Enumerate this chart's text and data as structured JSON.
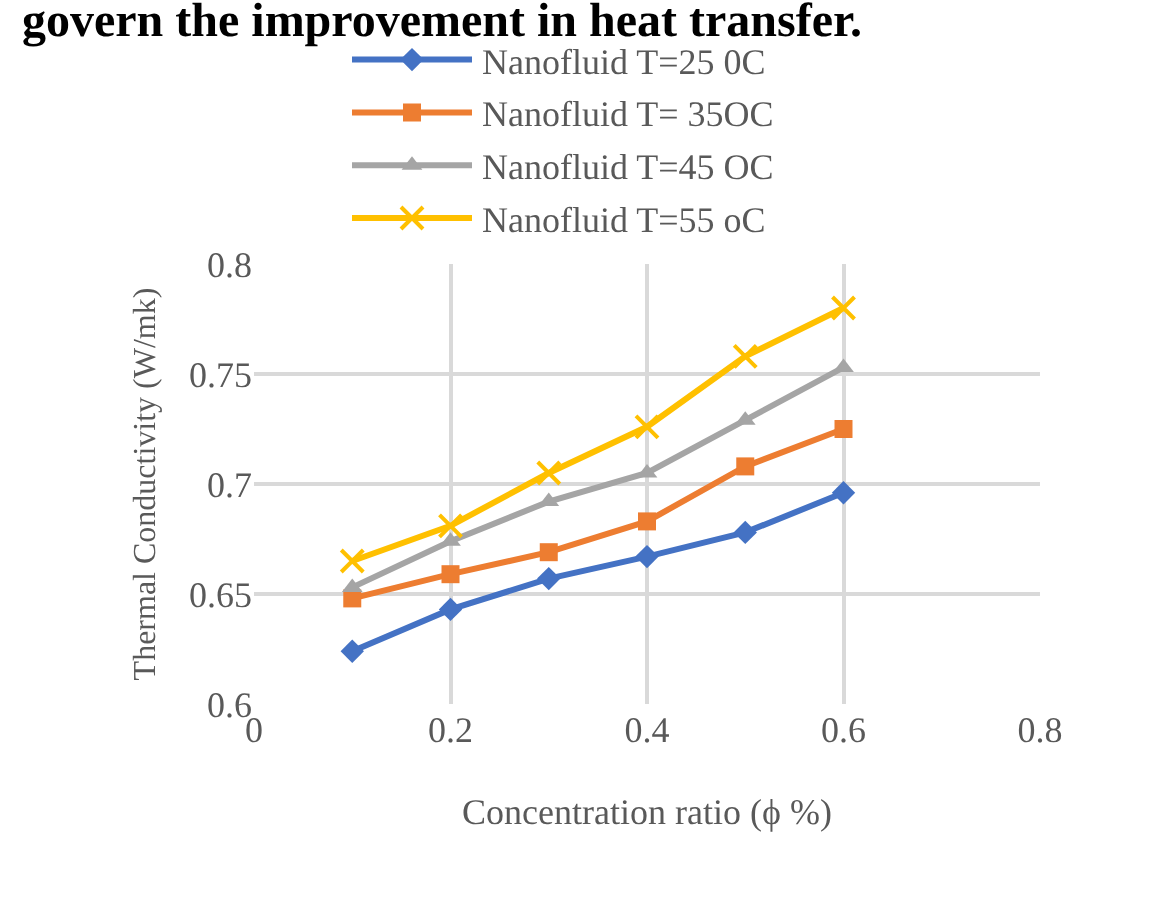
{
  "chart_data": {
    "type": "line",
    "xlabel": "Concentration ratio (ϕ %)",
    "ylabel": "Thermal Conductivity (W/mk)",
    "annotations": [
      "govern the improvement in heat transfer."
    ],
    "x": [
      0.1,
      0.2,
      0.3,
      0.4,
      0.5,
      0.6
    ],
    "series": [
      {
        "name": "Nanofluid T=25 0C",
        "color": "#4472c4",
        "marker": "diamond",
        "values": [
          0.624,
          0.643,
          0.657,
          0.667,
          0.678,
          0.696
        ]
      },
      {
        "name": "Nanofluid T= 35OC",
        "color": "#ed7d31",
        "marker": "square",
        "values": [
          0.648,
          0.659,
          0.669,
          0.683,
          0.708,
          0.725
        ]
      },
      {
        "name": "Nanofluid T=45 OC",
        "color": "#a5a5a5",
        "marker": "triangle",
        "values": [
          0.653,
          0.674,
          0.692,
          0.705,
          0.729,
          0.753
        ]
      },
      {
        "name": "Nanofluid T=55 oC",
        "color": "#ffc000",
        "marker": "cross",
        "values": [
          0.665,
          0.681,
          0.705,
          0.726,
          0.758,
          0.78
        ]
      }
    ],
    "xlim": [
      0,
      0.8
    ],
    "xticks": [
      0,
      0.2,
      0.4,
      0.6,
      0.8
    ],
    "ylim": [
      0.6,
      0.8
    ],
    "yticks": [
      0.6,
      0.65,
      0.7,
      0.75,
      0.8
    ],
    "grid": true,
    "legend": "top",
    "line_style": "solid"
  }
}
